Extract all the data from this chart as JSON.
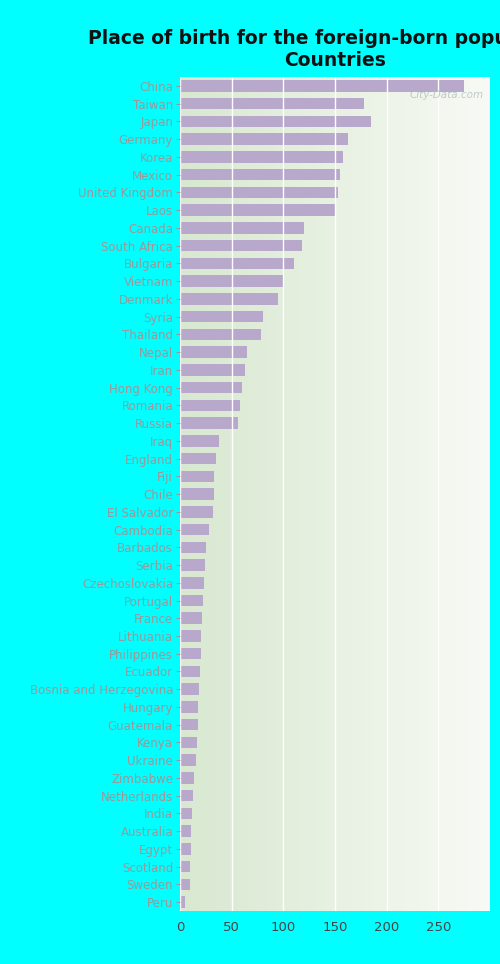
{
  "title": "Place of birth for the foreign-born population -\nCountries",
  "bg_color": "#00FFFF",
  "bar_color": "#b8a8cc",
  "categories": [
    "China",
    "Taiwan",
    "Japan",
    "Germany",
    "Korea",
    "Mexico",
    "United Kingdom",
    "Laos",
    "Canada",
    "South Africa",
    "Bulgaria",
    "Vietnam",
    "Denmark",
    "Syria",
    "Thailand",
    "Nepal",
    "Iran",
    "Hong Kong",
    "Romania",
    "Russia",
    "Iraq",
    "England",
    "Fiji",
    "Chile",
    "El Salvador",
    "Cambodia",
    "Barbados",
    "Serbia",
    "Czechoslovakia",
    "Portugal",
    "France",
    "Lithuania",
    "Philippines",
    "Ecuador",
    "Bosnia and Herzegovina",
    "Hungary",
    "Guatemala",
    "Kenya",
    "Ukraine",
    "Zimbabwe",
    "Netherlands",
    "India",
    "Australia",
    "Egypt",
    "Scotland",
    "Sweden",
    "Peru"
  ],
  "values": [
    275,
    178,
    185,
    163,
    158,
    155,
    153,
    150,
    120,
    118,
    110,
    100,
    95,
    80,
    78,
    65,
    63,
    60,
    58,
    56,
    38,
    35,
    33,
    33,
    32,
    28,
    25,
    24,
    23,
    22,
    21,
    20,
    20,
    19,
    18,
    17,
    17,
    16,
    15,
    14,
    13,
    12,
    11,
    11,
    10,
    10,
    5
  ],
  "xlim": [
    0,
    300
  ],
  "xticks": [
    0,
    50,
    100,
    150,
    200,
    250
  ],
  "title_fontsize": 13.5,
  "label_fontsize": 8.5,
  "tick_fontsize": 9.5
}
